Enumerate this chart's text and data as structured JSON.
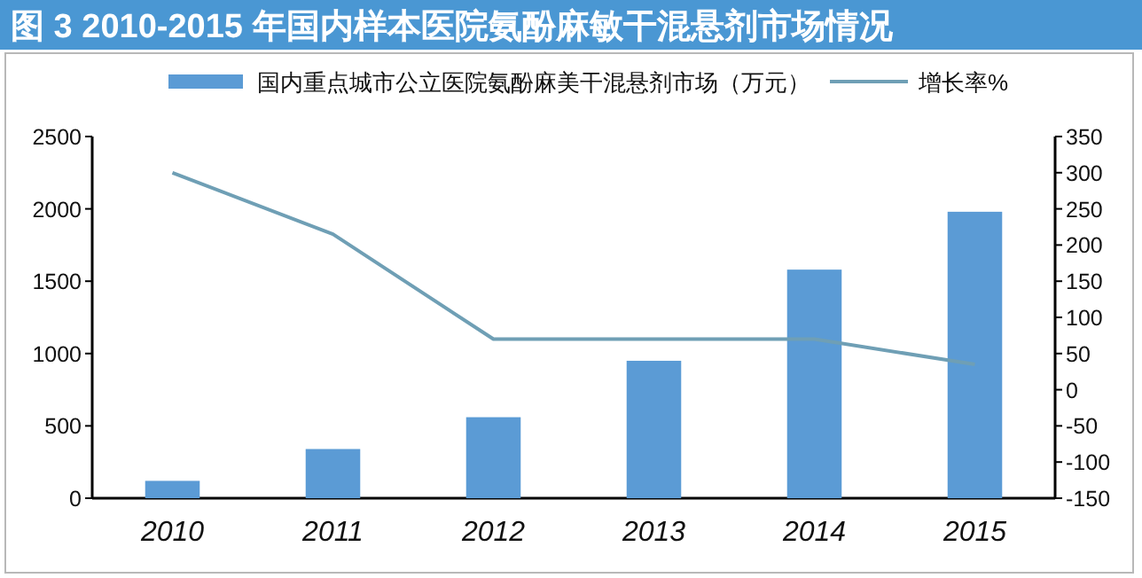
{
  "chart_data": {
    "type": "bar",
    "title": "图 3 2010-2015 年国内样本医院氨酚麻敏干混悬剂市场情况",
    "categories": [
      "2010",
      "2011",
      "2012",
      "2013",
      "2014",
      "2015"
    ],
    "series": [
      {
        "name": "国内重点城市公立医院氨酚麻美干混悬剂市场（万元）",
        "color": "#5b9bd5",
        "values": [
          120,
          340,
          560,
          950,
          1580,
          1980
        ]
      },
      {
        "name": "增长率%",
        "type": "line",
        "axis": "y2",
        "color": "#6f9fb5",
        "values": [
          300,
          215,
          70,
          70,
          70,
          35
        ]
      }
    ],
    "ylim": [
      0,
      2500
    ],
    "yticks": [
      0,
      500,
      1000,
      1500,
      2000,
      2500
    ],
    "y2lim": [
      -150,
      350
    ],
    "y2ticks": [
      -150,
      -100,
      -50,
      0,
      50,
      100,
      150,
      200,
      250,
      300,
      350
    ],
    "grid": false,
    "legend": "top"
  }
}
